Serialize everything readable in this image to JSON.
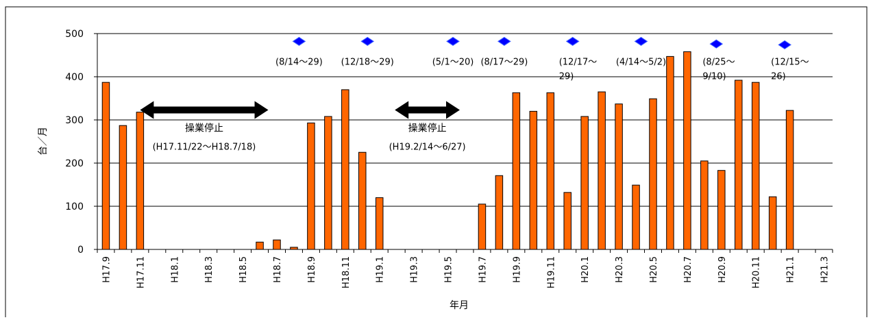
{
  "chart_data": {
    "type": "bar",
    "xlabel": "年月",
    "ylabel": "台／月",
    "ylim": [
      0,
      500
    ],
    "yticks": [
      0,
      100,
      200,
      300,
      400,
      500
    ],
    "grid": true,
    "colors": {
      "bar": "#ff6600",
      "bar_edge": "#000000",
      "marker": "#0000ff",
      "arrow": "#000000"
    },
    "categories": [
      "H17.9",
      "H17.10",
      "H17.11",
      "H17.12",
      "H18.1",
      "H18.2",
      "H18.3",
      "H18.4",
      "H18.5",
      "H18.6",
      "H18.7",
      "H18.8",
      "H18.9",
      "H18.10",
      "H18.11",
      "H18.12",
      "H19.1",
      "H19.2",
      "H19.3",
      "H19.4",
      "H19.5",
      "H19.6",
      "H19.7",
      "H19.8",
      "H19.9",
      "H19.10",
      "H19.11",
      "H19.12",
      "H20.1",
      "H20.2",
      "H20.3",
      "H20.4",
      "H20.5",
      "H20.6",
      "H20.7",
      "H20.8",
      "H20.9",
      "H20.10",
      "H20.11",
      "H20.12",
      "H21.1",
      "H21.2",
      "H21.3"
    ],
    "tick_labels": [
      "H17.9",
      "",
      "H17.11",
      "",
      "H18.1",
      "",
      "H18.3",
      "",
      "H18.5",
      "",
      "H18.7",
      "",
      "H18.9",
      "",
      "H18.11",
      "",
      "H19.1",
      "",
      "H19.3",
      "",
      "H19.5",
      "",
      "H19.7",
      "",
      "H19.9",
      "",
      "H19.11",
      "",
      "H20.1",
      "",
      "H20.3",
      "",
      "H20.5",
      "",
      "H20.7",
      "",
      "H20.9",
      "",
      "H20.11",
      "",
      "H21.1",
      "",
      "H21.3"
    ],
    "values": [
      387,
      287,
      318,
      null,
      null,
      null,
      null,
      null,
      null,
      17,
      22,
      5,
      293,
      308,
      370,
      225,
      120,
      null,
      null,
      null,
      null,
      null,
      105,
      171,
      363,
      320,
      363,
      132,
      308,
      365,
      337,
      149,
      349,
      447,
      458,
      205,
      183,
      392,
      387,
      122,
      322,
      null,
      null
    ],
    "annotations": [
      {
        "position": 11.3,
        "lines": [
          "(8/14～29)"
        ]
      },
      {
        "position": 15.3,
        "lines": [
          "(12/18～29)"
        ]
      },
      {
        "position": 20.3,
        "lines": [
          "(5/1～20)"
        ]
      },
      {
        "position": 23.3,
        "lines": [
          "(8/17～29)"
        ]
      },
      {
        "position": 27.3,
        "lines": [
          "(12/17～",
          "29)"
        ]
      },
      {
        "position": 31.3,
        "lines": [
          "(4/14～5/2)"
        ]
      },
      {
        "position": 35.7,
        "lines": [
          "(8/25～",
          "9/10)"
        ]
      },
      {
        "position": 39.7,
        "lines": [
          "(12/15～",
          "26)"
        ]
      }
    ],
    "markers": [
      {
        "position": 11.3,
        "value": 482
      },
      {
        "position": 15.3,
        "value": 482
      },
      {
        "position": 20.3,
        "value": 482
      },
      {
        "position": 23.3,
        "value": 482
      },
      {
        "position": 27.3,
        "value": 482
      },
      {
        "position": 31.3,
        "value": 482
      },
      {
        "position": 35.7,
        "value": 476
      },
      {
        "position": 39.7,
        "value": 474
      }
    ],
    "shutdowns": [
      {
        "label": "操業停止",
        "period": "(H17.11/22～H18.7/18)",
        "from": 2.5,
        "to": 10.0,
        "value": 323
      },
      {
        "label": "操業停止",
        "period": "(H19.2/14～6/27)",
        "from": 17.4,
        "to": 21.2,
        "value": 323
      }
    ]
  }
}
